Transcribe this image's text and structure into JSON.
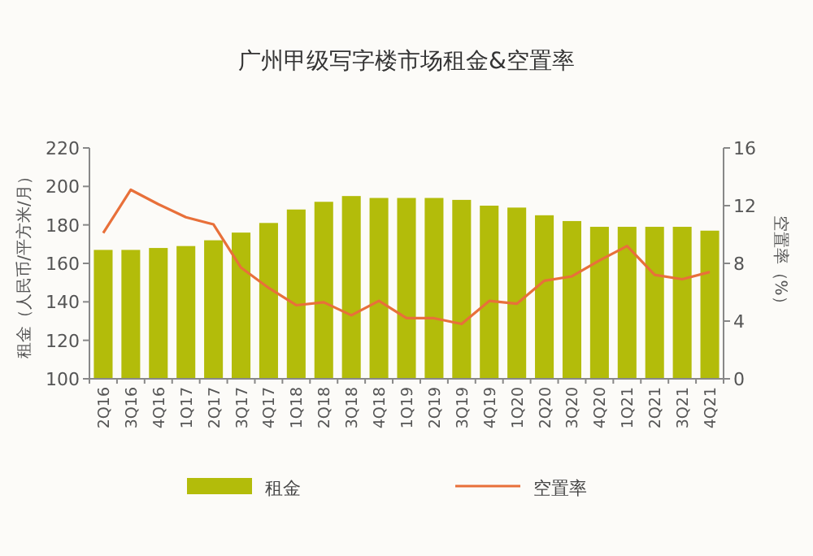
{
  "chart_data": {
    "type": "bar",
    "title": "广州甲级写字楼市场租金&空置率",
    "ylabel": "租金（人民币/平方米/月）",
    "y2label": "空置率（%）",
    "categories": [
      "2Q16",
      "3Q16",
      "4Q16",
      "1Q17",
      "2Q17",
      "3Q17",
      "4Q17",
      "1Q18",
      "2Q18",
      "3Q18",
      "4Q18",
      "1Q19",
      "2Q19",
      "3Q19",
      "4Q19",
      "1Q20",
      "2Q20",
      "3Q20",
      "4Q20",
      "1Q21",
      "2Q21",
      "3Q21",
      "4Q21"
    ],
    "series": [
      {
        "name": "租金",
        "color": "#b3bc0a",
        "values": [
          167,
          167,
          168,
          169,
          172,
          176,
          181,
          188,
          192,
          195,
          194,
          194,
          194,
          193,
          190,
          189,
          185,
          182,
          179,
          179,
          179,
          179,
          177
        ]
      },
      {
        "name": "空置率",
        "type": "line",
        "axis": "y2",
        "color": "#e8703a",
        "values": [
          10.1,
          13.1,
          12.1,
          11.2,
          10.7,
          7.7,
          6.3,
          5.1,
          5.3,
          4.4,
          5.4,
          4.2,
          4.2,
          3.8,
          5.4,
          5.2,
          6.8,
          7.1,
          8.2,
          9.2,
          7.2,
          6.9,
          7.4
        ]
      }
    ],
    "ylim": [
      100,
      220
    ],
    "yticks": [
      100,
      120,
      140,
      160,
      180,
      200,
      220
    ],
    "y2lim": [
      0,
      16
    ],
    "y2ticks": [
      0,
      4,
      8,
      12,
      16
    ],
    "legend": "bottom",
    "grid": false
  }
}
